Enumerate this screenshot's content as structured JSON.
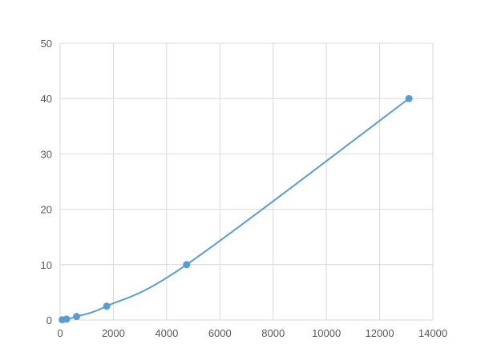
{
  "chart_data": {
    "type": "scatter",
    "title": "",
    "xlabel": "",
    "ylabel": "",
    "xlim": [
      0,
      14000
    ],
    "ylim": [
      0,
      50
    ],
    "xticks": [
      0,
      2000,
      4000,
      6000,
      8000,
      10000,
      12000,
      14000
    ],
    "yticks": [
      0,
      10,
      20,
      30,
      40,
      50
    ],
    "grid": true,
    "legend": "none",
    "series": [
      {
        "color": "#5b9bd5",
        "smooth_line": true,
        "x": [
          80,
          240,
          620,
          1750,
          4750,
          13100
        ],
        "y": [
          0.039,
          0.156,
          0.625,
          2.5,
          10,
          40
        ]
      }
    ]
  }
}
